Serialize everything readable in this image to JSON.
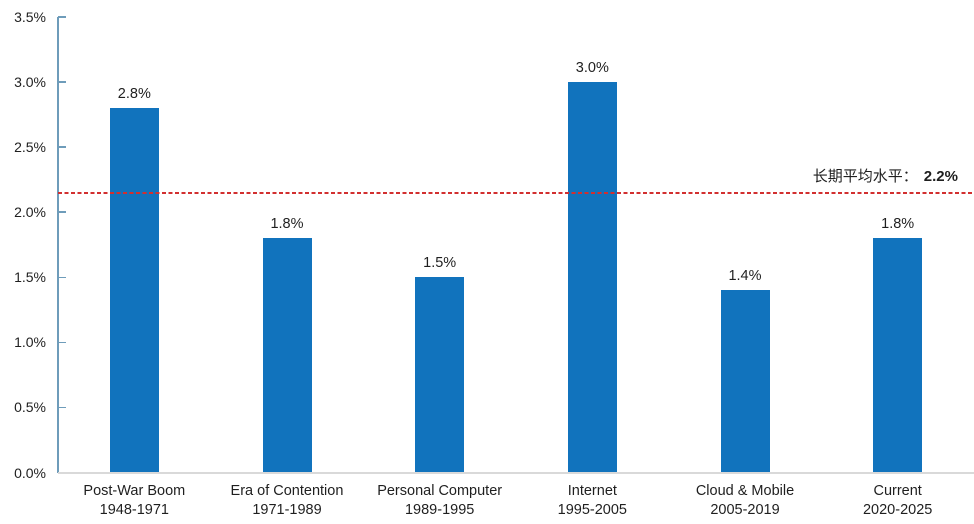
{
  "chart_data": {
    "type": "bar",
    "title": "",
    "xlabel": "",
    "ylabel": "",
    "categories": [
      {
        "name": "Post-War Boom",
        "years": "1948-1971"
      },
      {
        "name": "Era of Contention",
        "years": "1971-1989"
      },
      {
        "name": "Personal Computer",
        "years": "1989-1995"
      },
      {
        "name": "Internet",
        "years": "1995-2005"
      },
      {
        "name": "Cloud & Mobile",
        "years": "2005-2019"
      },
      {
        "name": "Current",
        "years": "2020-2025"
      }
    ],
    "values": [
      2.8,
      1.8,
      1.5,
      3.0,
      1.4,
      1.8
    ],
    "value_labels": [
      "2.8%",
      "1.8%",
      "1.5%",
      "3.0%",
      "1.4%",
      "1.8%"
    ],
    "ylim": [
      0,
      3.5
    ],
    "ytick_values": [
      3.5,
      3.0,
      2.5,
      2.0,
      1.5,
      1.0,
      0.5,
      0.0
    ],
    "ytick_labels": [
      "3.5%",
      "3.0%",
      "2.5%",
      "2.0%",
      "1.5%",
      "1.0%",
      "0.5%",
      "0.0%"
    ],
    "grid": false,
    "legend": "none",
    "colors": {
      "bar": "#1173bd",
      "y_axis_line": "#6e9cba",
      "x_axis_line": "#d9d9d9",
      "text": "#1f1f1f",
      "reference_line": "#d22f2f"
    },
    "reference_line": {
      "label_prefix": "长期平均水平：",
      "label_value": "2.2%",
      "drawn_at_value": 2.15
    }
  }
}
